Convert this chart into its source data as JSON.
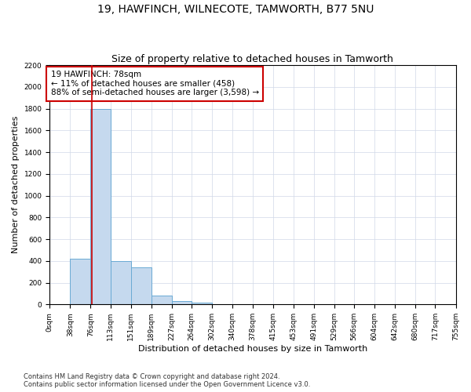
{
  "title": "19, HAWFINCH, WILNECOTE, TAMWORTH, B77 5NU",
  "subtitle": "Size of property relative to detached houses in Tamworth",
  "xlabel": "Distribution of detached houses by size in Tamworth",
  "ylabel": "Number of detached properties",
  "bin_edges": [
    0,
    38,
    76,
    113,
    151,
    189,
    227,
    264,
    302,
    340,
    378,
    415,
    453,
    491,
    529,
    566,
    604,
    642,
    680,
    717,
    755
  ],
  "bin_labels": [
    "0sqm",
    "38sqm",
    "76sqm",
    "113sqm",
    "151sqm",
    "189sqm",
    "227sqm",
    "264sqm",
    "302sqm",
    "340sqm",
    "378sqm",
    "415sqm",
    "453sqm",
    "491sqm",
    "529sqm",
    "566sqm",
    "604sqm",
    "642sqm",
    "680sqm",
    "717sqm",
    "755sqm"
  ],
  "bar_values": [
    5,
    420,
    1800,
    400,
    340,
    80,
    30,
    15,
    5,
    2,
    1,
    0,
    0,
    0,
    0,
    0,
    0,
    0,
    0,
    0
  ],
  "bar_color": "#c5d9ee",
  "bar_edgecolor": "#6aaad4",
  "property_size": 78,
  "vline_color": "#cc0000",
  "annotation_text": "19 HAWFINCH: 78sqm\n← 11% of detached houses are smaller (458)\n88% of semi-detached houses are larger (3,598) →",
  "annotation_box_color": "#cc0000",
  "ylim": [
    0,
    2200
  ],
  "yticks": [
    0,
    200,
    400,
    600,
    800,
    1000,
    1200,
    1400,
    1600,
    1800,
    2000,
    2200
  ],
  "grid_color": "#d0d8e8",
  "footer_line1": "Contains HM Land Registry data © Crown copyright and database right 2024.",
  "footer_line2": "Contains public sector information licensed under the Open Government Licence v3.0.",
  "background_color": "#ffffff",
  "title_fontsize": 10,
  "subtitle_fontsize": 9,
  "axis_label_fontsize": 8,
  "tick_fontsize": 6.5,
  "annotation_fontsize": 7.5,
  "footer_fontsize": 6
}
